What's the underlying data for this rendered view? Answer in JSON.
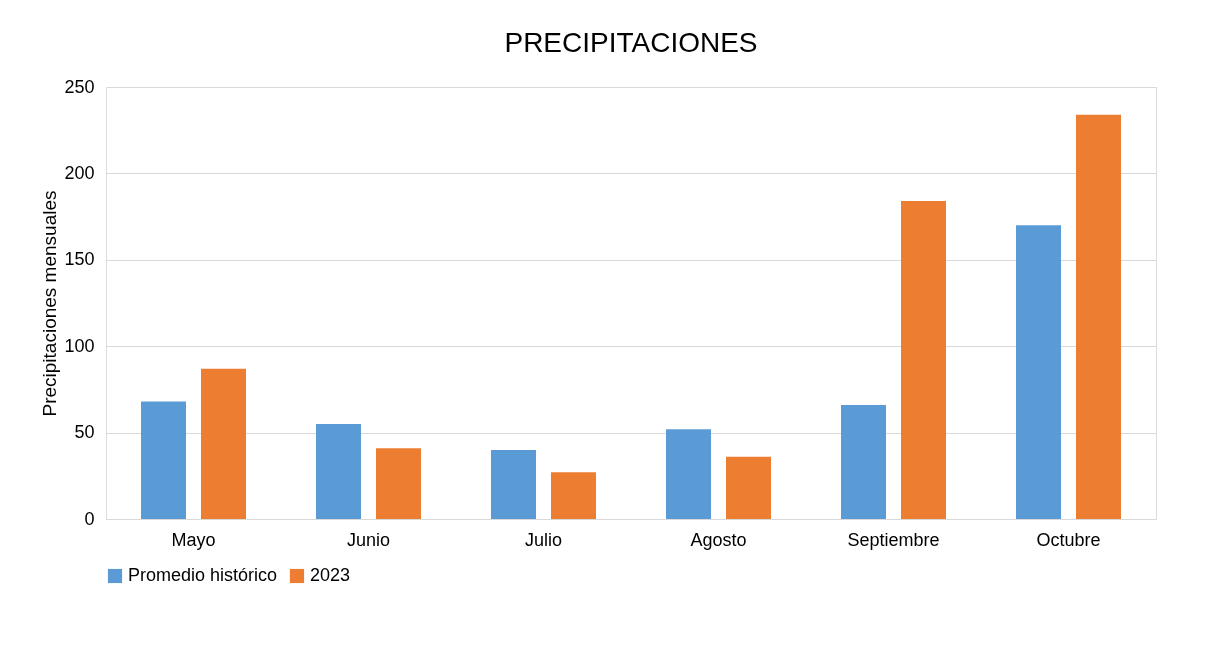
{
  "chart_data": {
    "type": "bar",
    "title": "PRECIPITACIONES",
    "ylabel": "Precipitaciones mensuales",
    "categories": [
      "Mayo",
      "Junio",
      "Julio",
      "Agosto",
      "Septiembre",
      "Octubre"
    ],
    "series": [
      {
        "name": "Promedio histórico",
        "color": "#5b9bd5",
        "values": [
          68,
          55,
          40,
          52,
          66,
          170
        ]
      },
      {
        "name": "2023",
        "color": "#ed7d31",
        "values": [
          87,
          41,
          27,
          36,
          184,
          234
        ]
      }
    ],
    "ylim": [
      0,
      250
    ],
    "yticks": [
      0,
      50,
      100,
      150,
      200,
      250
    ],
    "grid": "y",
    "legend": "bottom"
  }
}
